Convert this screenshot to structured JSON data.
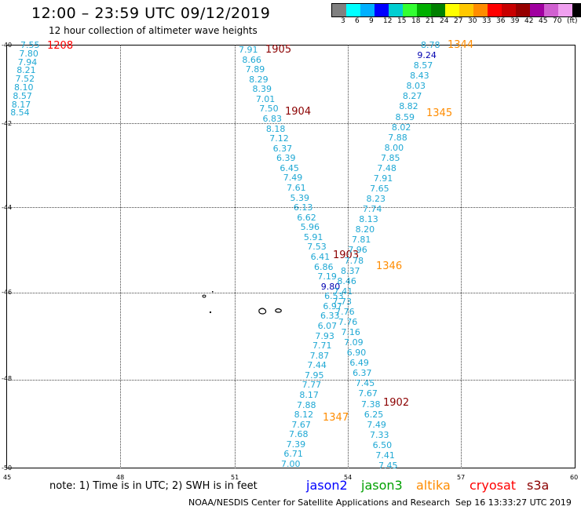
{
  "header": {
    "title": "12:00 – 23:59 UTC 09/12/2019",
    "subtitle": "12 hour collection of altimeter wave heights"
  },
  "colorbar": {
    "colors": [
      "#808080",
      "#00ffff",
      "#00b0ff",
      "#0000ff",
      "#00ced1",
      "#33ff33",
      "#00b000",
      "#008000",
      "#ffff00",
      "#ffc800",
      "#ff8c00",
      "#ff0000",
      "#c80000",
      "#960000",
      "#a000a0",
      "#d060d0",
      "#f0a0f0",
      "#000000"
    ],
    "ticks": [
      "3",
      "6",
      "9",
      "12",
      "15",
      "18",
      "21",
      "24",
      "27",
      "30",
      "33",
      "36",
      "39",
      "42",
      "45",
      "70",
      "(ft)"
    ]
  },
  "axes": {
    "lat_labels": [
      "-40",
      "-42",
      "-44",
      "-46",
      "-48",
      "-50"
    ],
    "lon_labels": [
      "45",
      "48",
      "51",
      "54",
      "57",
      "60"
    ]
  },
  "tracks": {
    "far_left": {
      "time": "1208",
      "values": [
        "7.55",
        "7.80",
        "7.94",
        "8.21",
        "7.52",
        "8.10",
        "8.57",
        "8.17",
        "8.54"
      ]
    },
    "descending": {
      "times": [
        "1905",
        "1904",
        "1903",
        "1902"
      ],
      "values": [
        "7.91",
        "8.66",
        "7.89",
        "8.29",
        "8.39",
        "7.01",
        "7.50",
        "6.83",
        "8.18",
        "7.12",
        "6.37",
        "6.39",
        "6.45",
        "7.49",
        "7.61",
        "5.39",
        "6.13",
        "6.62",
        "5.96",
        "5.91",
        "7.53",
        "6.41",
        "6.86",
        "7.19",
        "9.80",
        "6.53",
        "6.97",
        "6.33",
        "6.07",
        "7.93",
        "7.71",
        "7.87",
        "7.44",
        "7.95",
        "7.77",
        "8.17",
        "7.88",
        "8.12",
        "7.67",
        "7.68",
        "7.39",
        "6.71",
        "7.00"
      ]
    },
    "ascending": {
      "times": [
        "1344",
        "1345",
        "1346",
        "1347"
      ],
      "values": [
        "8.78",
        "9.24",
        "8.57",
        "8.43",
        "8.03",
        "8.27",
        "8.82",
        "8.59",
        "8.02",
        "7.88",
        "8.00",
        "7.85",
        "7.48",
        "7.91",
        "7.65",
        "8.23",
        "7.74",
        "8.13",
        "8.20",
        "7.81",
        "7.96",
        "7.78",
        "8.37",
        "8.46",
        "7.41",
        "7.73",
        "7.76",
        "7.76",
        "7.16",
        "7.09",
        "6.90",
        "6.49",
        "6.37",
        "7.45",
        "7.67",
        "7.38",
        "6.25",
        "7.49",
        "7.33",
        "6.50",
        "7.41",
        "7.45"
      ]
    }
  },
  "colors": {
    "obs": "#1fa8d4",
    "obs_high": "#0000b0",
    "cryosat_time": "#ff0000",
    "s3a_time": "#8b0000",
    "altika_time": "#ff8c00"
  },
  "footer": {
    "note": "note:  1) Time is in UTC;  2) SWH is in feet",
    "legend": [
      {
        "label": "jason2",
        "color": "#0000ff"
      },
      {
        "label": "jason3",
        "color": "#00a000"
      },
      {
        "label": "altika",
        "color": "#ff8c00"
      },
      {
        "label": "cryosat",
        "color": "#ff0000"
      },
      {
        "label": "s3a",
        "color": "#8b0000"
      }
    ],
    "credit": "NOAA/NESDIS Center for Satellite Applications and Research",
    "timestamp": "Sep 16 13:33:27 UTC 2019"
  }
}
